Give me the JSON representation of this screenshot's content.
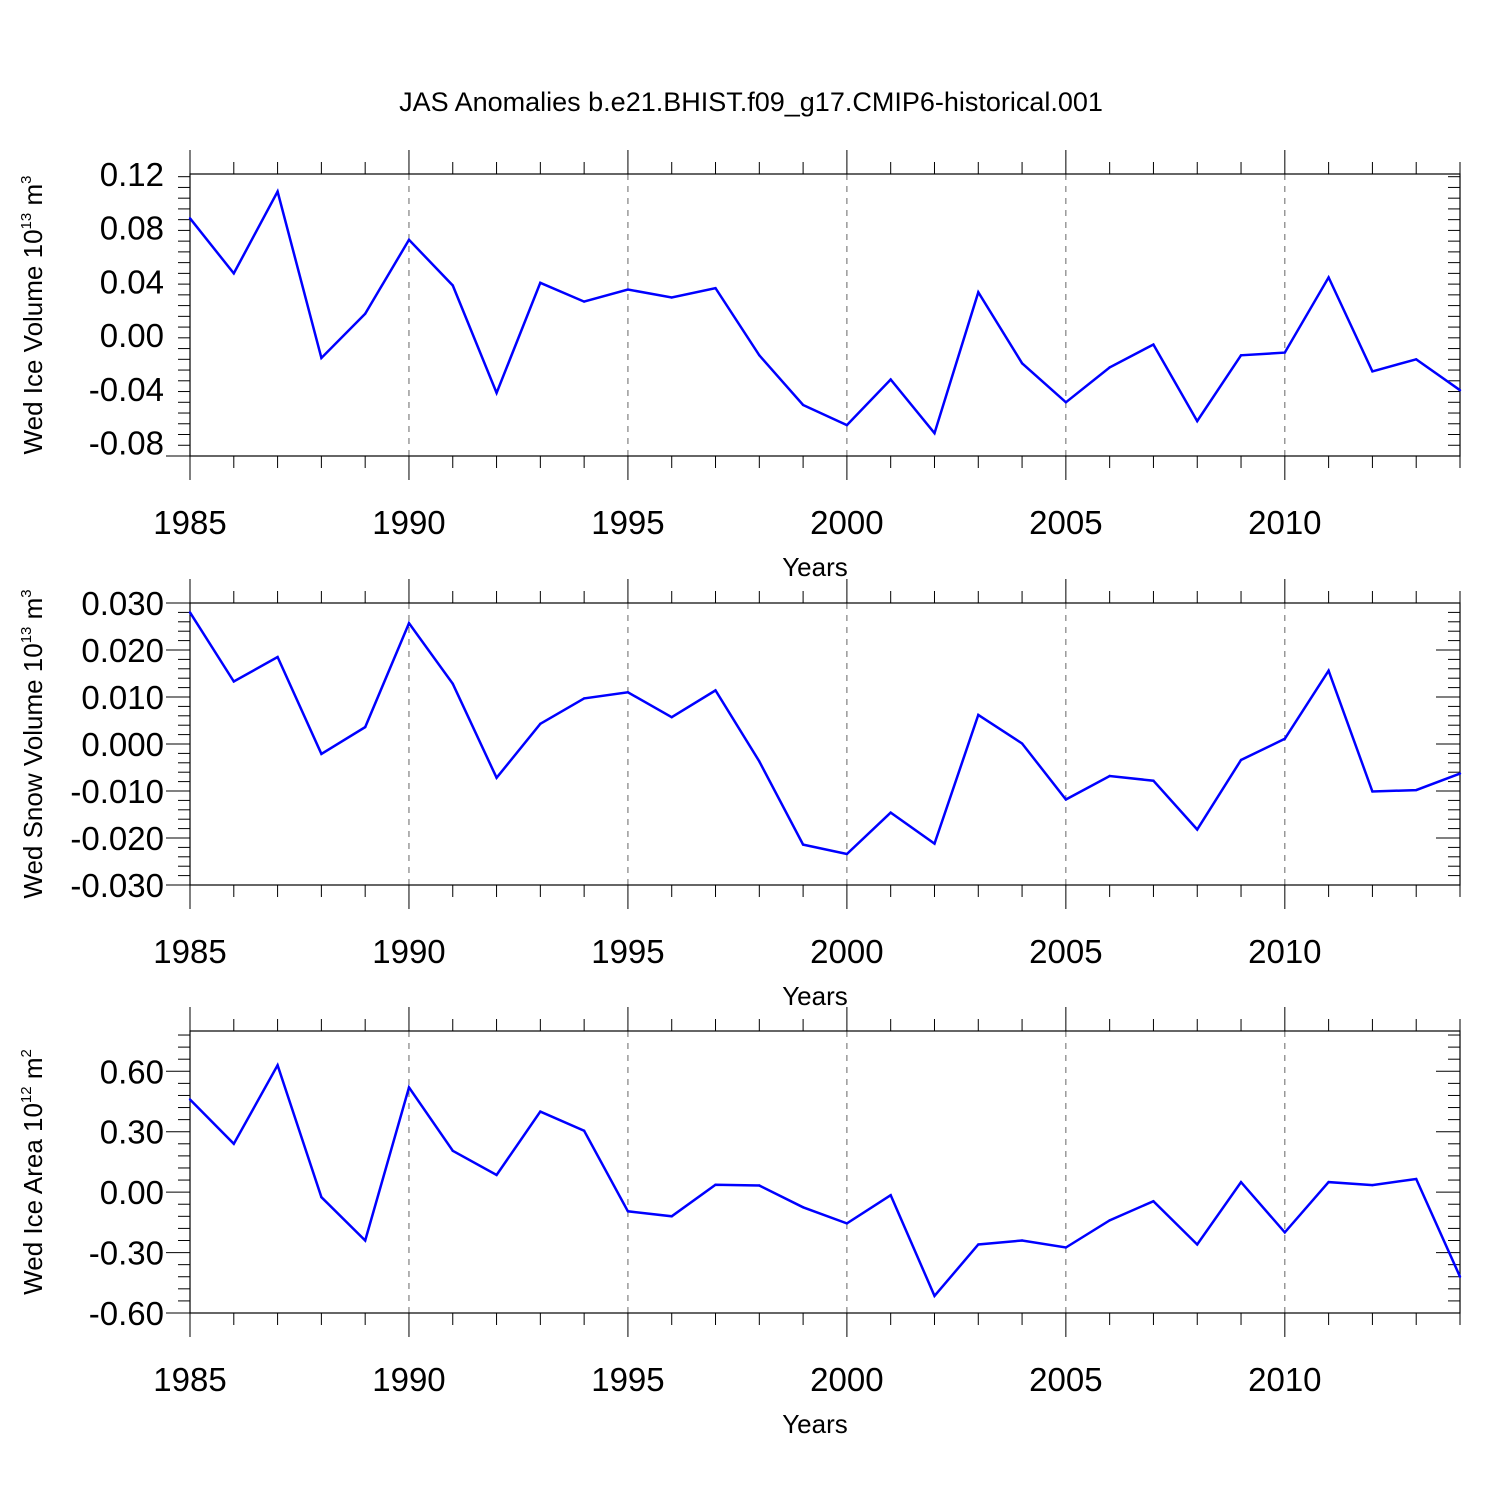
{
  "title": "JAS Anomalies b.e21.BHIST.f09_g17.CMIP6-historical.001",
  "colors": {
    "line": "#0000ff",
    "axis": "#000000",
    "grid": "#666666"
  },
  "chart_data": [
    {
      "type": "line",
      "id": "ice-volume",
      "ylabel": {
        "main": "Wed Ice Volume 10",
        "sup": "13",
        "unit": " m",
        "unit_sup": "3"
      },
      "xlabel": "Years",
      "xlim": [
        1985,
        2014
      ],
      "ylim": [
        -0.09,
        0.12
      ],
      "xticks": [
        1985,
        1990,
        1995,
        2000,
        2005,
        2010
      ],
      "xtick_labels": [
        "1985",
        "1990",
        "1995",
        "2000",
        "2005",
        "2010"
      ],
      "yticks": [
        0.12,
        0.08,
        0.04,
        0.0,
        -0.04,
        -0.08
      ],
      "ytick_labels": [
        "0.12",
        "0.08",
        "0.04",
        "0.00",
        "-0.04",
        "-0.08"
      ],
      "x": [
        1985,
        1986,
        1987,
        1988,
        1989,
        1990,
        1991,
        1992,
        1993,
        1994,
        1995,
        1996,
        1997,
        1998,
        1999,
        2000,
        2001,
        2002,
        2003,
        2004,
        2005,
        2006,
        2007,
        2008,
        2009,
        2010,
        2011,
        2012,
        2013,
        2014
      ],
      "values": [
        0.087,
        0.046,
        0.107,
        -0.017,
        0.016,
        0.071,
        0.037,
        -0.043,
        0.039,
        0.025,
        0.034,
        0.028,
        0.035,
        -0.015,
        -0.052,
        -0.067,
        -0.033,
        -0.073,
        0.032,
        -0.021,
        -0.05,
        -0.024,
        -0.007,
        -0.064,
        -0.015,
        -0.013,
        0.043,
        -0.027,
        -0.018,
        -0.041
      ]
    },
    {
      "type": "line",
      "id": "snow-volume",
      "ylabel": {
        "main": "Wed Snow Volume 10",
        "sup": "13",
        "unit": " m",
        "unit_sup": "3"
      },
      "xlabel": "Years",
      "xlim": [
        1985,
        2014
      ],
      "ylim": [
        -0.03,
        0.03
      ],
      "xticks": [
        1985,
        1990,
        1995,
        2000,
        2005,
        2010
      ],
      "xtick_labels": [
        "1985",
        "1990",
        "1995",
        "2000",
        "2005",
        "2010"
      ],
      "yticks": [
        0.03,
        0.02,
        0.01,
        0.0,
        -0.01,
        -0.02,
        -0.03
      ],
      "ytick_labels": [
        "0.030",
        "0.020",
        "0.010",
        "0.000",
        "-0.010",
        "-0.020",
        "-0.030"
      ],
      "x": [
        1985,
        1986,
        1987,
        1988,
        1989,
        1990,
        1991,
        1992,
        1993,
        1994,
        1995,
        1996,
        1997,
        1998,
        1999,
        2000,
        2001,
        2002,
        2003,
        2004,
        2005,
        2006,
        2007,
        2008,
        2009,
        2010,
        2011,
        2012,
        2013,
        2014
      ],
      "values": [
        0.028,
        0.0133,
        0.0185,
        -0.0021,
        0.0036,
        0.0257,
        0.0128,
        -0.0072,
        0.0043,
        0.0097,
        0.011,
        0.0057,
        0.0114,
        -0.0037,
        -0.0214,
        -0.0234,
        -0.0146,
        -0.0212,
        0.0062,
        0.0001,
        -0.0118,
        -0.0068,
        -0.0078,
        -0.0182,
        -0.0034,
        0.0011,
        0.0156,
        -0.0101,
        -0.0098,
        -0.0063
      ]
    },
    {
      "type": "line",
      "id": "ice-area",
      "ylabel": {
        "main": "Wed Ice Area 10",
        "sup": "12",
        "unit": " m",
        "unit_sup": "2"
      },
      "xlabel": "Years",
      "xlim": [
        1985,
        2014
      ],
      "ylim": [
        -0.6,
        0.8
      ],
      "xticks": [
        1985,
        1990,
        1995,
        2000,
        2005,
        2010
      ],
      "xtick_labels": [
        "1985",
        "1990",
        "1995",
        "2000",
        "2005",
        "2010"
      ],
      "yticks": [
        0.6,
        0.3,
        0.0,
        -0.3,
        -0.6
      ],
      "ytick_labels": [
        "0.60",
        "0.30",
        "0.00",
        "-0.30",
        "-0.60"
      ],
      "x": [
        1985,
        1986,
        1987,
        1988,
        1989,
        1990,
        1991,
        1992,
        1993,
        1994,
        1995,
        1996,
        1997,
        1998,
        1999,
        2000,
        2001,
        2002,
        2003,
        2004,
        2005,
        2006,
        2007,
        2008,
        2009,
        2010,
        2011,
        2012,
        2013,
        2014
      ],
      "values": [
        0.46,
        0.24,
        0.63,
        -0.025,
        -0.24,
        0.52,
        0.205,
        0.085,
        0.4,
        0.305,
        -0.095,
        -0.12,
        0.037,
        0.033,
        -0.075,
        -0.155,
        -0.015,
        -0.515,
        -0.26,
        -0.24,
        -0.275,
        -0.14,
        -0.045,
        -0.26,
        0.05,
        -0.2,
        0.05,
        0.035,
        0.065,
        -0.42
      ]
    }
  ]
}
